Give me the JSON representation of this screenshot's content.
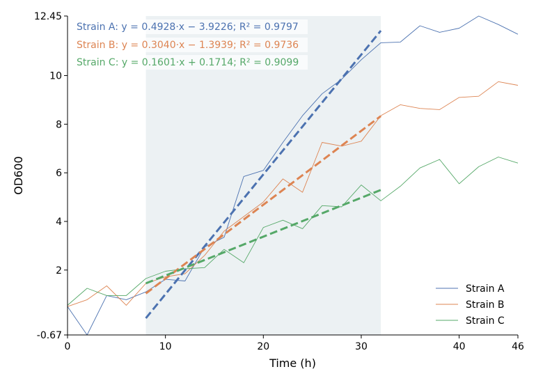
{
  "chart_data": {
    "type": "line",
    "xlabel": "Time (h)",
    "ylabel": "OD600",
    "xlim": [
      0,
      46
    ],
    "ylim": [
      -0.67,
      12.45
    ],
    "x_ticks": [
      0,
      10,
      20,
      30,
      40,
      46
    ],
    "y_ticks": [
      -0.67,
      2,
      4,
      6,
      8,
      10,
      12.45
    ],
    "y_tick_labels": [
      "-0.67",
      "2",
      "4",
      "6",
      "8",
      "10",
      "12.45"
    ],
    "shaded_region": {
      "x": [
        8,
        32
      ],
      "color": "#dde6ea"
    },
    "x": [
      0,
      2,
      4,
      6,
      8,
      10,
      12,
      14,
      16,
      18,
      20,
      22,
      24,
      26,
      28,
      30,
      32,
      34,
      36,
      38,
      40,
      42,
      44,
      46
    ],
    "series": [
      {
        "name": "Strain A",
        "color": "#4c72b0",
        "values": [
          0.5,
          -0.67,
          0.95,
          0.78,
          1.1,
          1.62,
          1.55,
          2.95,
          3.35,
          5.85,
          6.1,
          7.25,
          8.35,
          9.25,
          9.85,
          10.65,
          11.35,
          11.38,
          12.05,
          11.78,
          11.95,
          12.45,
          12.1,
          11.7
        ],
        "fit": {
          "label": "Strain A: y = 0.4928·x − 3.9226; R² = 0.9797",
          "slope": 0.4928,
          "intercept": -3.9226,
          "x_range": [
            8,
            32
          ]
        }
      },
      {
        "name": "Strain B",
        "color": "#dd8452",
        "values": [
          0.5,
          0.78,
          1.35,
          0.55,
          1.45,
          1.72,
          1.85,
          2.6,
          3.6,
          4.2,
          4.8,
          5.75,
          5.2,
          7.25,
          7.1,
          7.3,
          8.35,
          8.8,
          8.65,
          8.6,
          9.1,
          9.15,
          9.75,
          9.6
        ],
        "fit": {
          "label": "Strain B: y = 0.3040·x − 1.3939; R² = 0.9736",
          "slope": 0.304,
          "intercept": -1.3939,
          "x_range": [
            8,
            32
          ]
        }
      },
      {
        "name": "Strain C",
        "color": "#55a868",
        "values": [
          0.55,
          1.25,
          0.95,
          0.95,
          1.65,
          1.95,
          2.05,
          2.1,
          2.85,
          2.3,
          3.75,
          4.05,
          3.7,
          4.65,
          4.6,
          5.5,
          4.85,
          5.45,
          6.2,
          6.55,
          5.55,
          6.25,
          6.65,
          6.4
        ],
        "fit": {
          "label": "Strain C: y = 0.1601·x + 0.1714; R² = 0.9099",
          "slope": 0.1601,
          "intercept": 0.1714,
          "x_range": [
            8,
            32
          ]
        }
      }
    ],
    "legend_position": "lower-right",
    "grid": false
  }
}
